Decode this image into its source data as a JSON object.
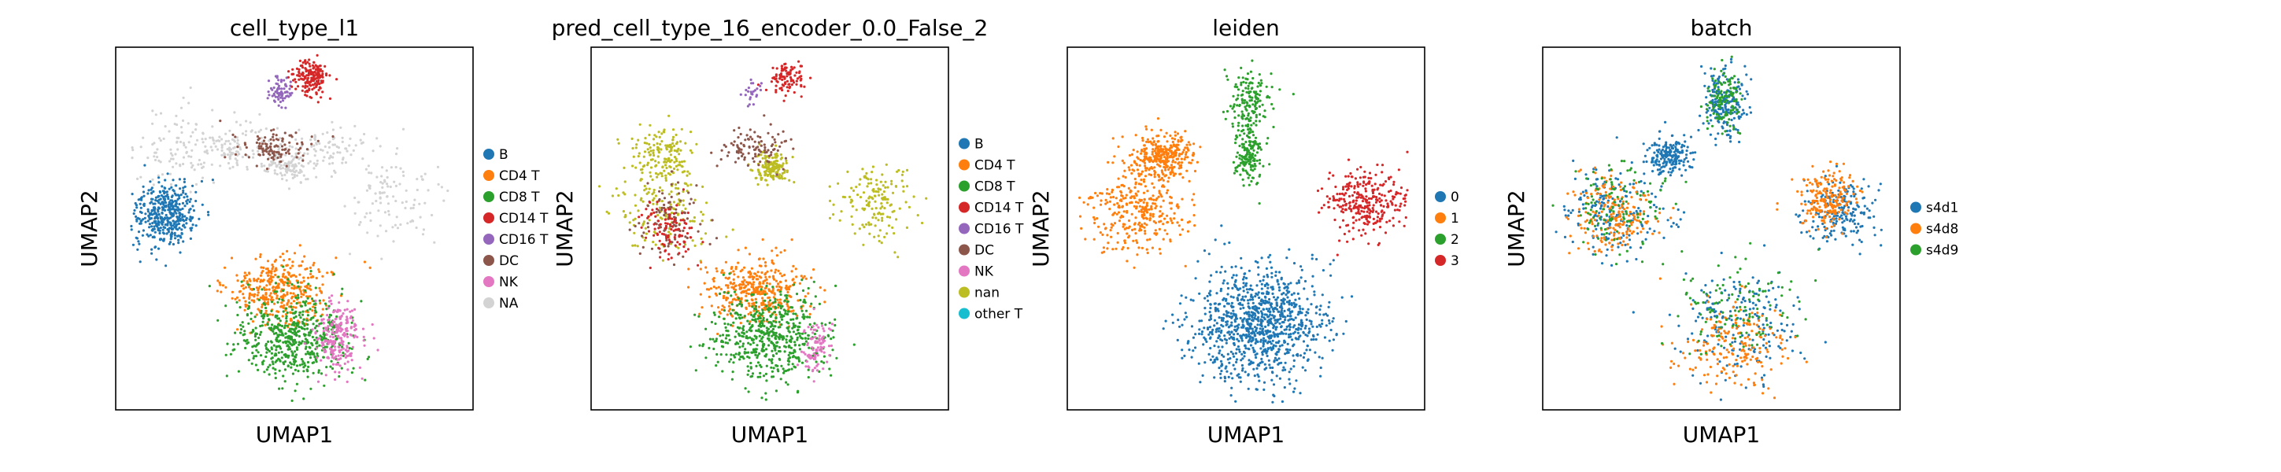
{
  "chart_data": [
    {
      "type": "scatter",
      "title": "cell_type_l1",
      "xlabel": "UMAP1",
      "ylabel": "UMAP2",
      "grid": false,
      "axis_ticks": false,
      "legend_position": "right",
      "legend": [
        {
          "label": "B",
          "color": "#1f77b4"
        },
        {
          "label": "CD4 T",
          "color": "#ff7f0e"
        },
        {
          "label": "CD8 T",
          "color": "#2ca02c"
        },
        {
          "label": "CD14 T",
          "color": "#d62728"
        },
        {
          "label": "CD16 T",
          "color": "#9467bd"
        },
        {
          "label": "DC",
          "color": "#8c564b"
        },
        {
          "label": "NK",
          "color": "#e377c2"
        },
        {
          "label": "NA",
          "color": "#d3d3d3"
        }
      ],
      "groups": [
        {
          "label": "NA",
          "n": 520,
          "regions": [
            [
              0.33,
              0.28,
              0.1,
              0.07
            ],
            [
              0.18,
              0.28,
              0.13,
              0.11
            ],
            [
              0.78,
              0.42,
              0.13,
              0.11
            ],
            [
              0.58,
              0.28,
              0.15,
              0.06
            ],
            [
              0.48,
              0.33,
              0.06,
              0.05
            ]
          ]
        },
        {
          "label": "B",
          "n": 420,
          "regions": [
            [
              0.14,
              0.46,
              0.09,
              0.09
            ]
          ]
        },
        {
          "label": "CD4 T",
          "n": 380,
          "regions": [
            [
              0.46,
              0.67,
              0.14,
              0.09
            ]
          ]
        },
        {
          "label": "CD8 T",
          "n": 560,
          "regions": [
            [
              0.5,
              0.8,
              0.16,
              0.12
            ]
          ]
        },
        {
          "label": "NK",
          "n": 220,
          "regions": [
            [
              0.62,
              0.8,
              0.06,
              0.1
            ]
          ]
        },
        {
          "label": "DC",
          "n": 110,
          "regions": [
            [
              0.45,
              0.28,
              0.1,
              0.05
            ]
          ]
        },
        {
          "label": "CD16 T",
          "n": 70,
          "regions": [
            [
              0.46,
              0.12,
              0.04,
              0.04
            ]
          ]
        },
        {
          "label": "CD14 T",
          "n": 180,
          "regions": [
            [
              0.55,
              0.08,
              0.05,
              0.05
            ]
          ]
        }
      ]
    },
    {
      "type": "scatter",
      "title": "pred_cell_type_16_encoder_0.0_False_2",
      "xlabel": "UMAP1",
      "ylabel": "UMAP2",
      "grid": false,
      "axis_ticks": false,
      "legend_position": "right",
      "legend": [
        {
          "label": "B",
          "color": "#1f77b4"
        },
        {
          "label": "CD4 T",
          "color": "#ff7f0e"
        },
        {
          "label": "CD8 T",
          "color": "#2ca02c"
        },
        {
          "label": "CD14 T",
          "color": "#d62728"
        },
        {
          "label": "CD16 T",
          "color": "#9467bd"
        },
        {
          "label": "DC",
          "color": "#8c564b"
        },
        {
          "label": "NK",
          "color": "#e377c2"
        },
        {
          "label": "nan",
          "color": "#bcbd22"
        },
        {
          "label": "other T",
          "color": "#17becf"
        }
      ],
      "groups": [
        {
          "label": "nan",
          "n": 620,
          "regions": [
            [
              0.2,
              0.45,
              0.14,
              0.13
            ],
            [
              0.79,
              0.43,
              0.11,
              0.11
            ],
            [
              0.2,
              0.3,
              0.08,
              0.07
            ],
            [
              0.5,
              0.33,
              0.05,
              0.04
            ]
          ]
        },
        {
          "label": "DC",
          "n": 200,
          "regions": [
            [
              0.22,
              0.48,
              0.09,
              0.1
            ],
            [
              0.45,
              0.28,
              0.1,
              0.05
            ]
          ]
        },
        {
          "label": "CD14 T",
          "n": 200,
          "regions": [
            [
              0.55,
              0.08,
              0.05,
              0.05
            ],
            [
              0.22,
              0.5,
              0.08,
              0.08
            ]
          ]
        },
        {
          "label": "CD4 T",
          "n": 380,
          "regions": [
            [
              0.46,
              0.67,
              0.14,
              0.09
            ]
          ]
        },
        {
          "label": "CD8 T",
          "n": 580,
          "regions": [
            [
              0.5,
              0.8,
              0.16,
              0.12
            ]
          ]
        },
        {
          "label": "NK",
          "n": 90,
          "regions": [
            [
              0.63,
              0.82,
              0.04,
              0.08
            ]
          ]
        },
        {
          "label": "CD16 T",
          "n": 25,
          "regions": [
            [
              0.45,
              0.12,
              0.03,
              0.03
            ]
          ]
        }
      ]
    },
    {
      "type": "scatter",
      "title": "leiden",
      "xlabel": "UMAP1",
      "ylabel": "UMAP2",
      "grid": false,
      "axis_ticks": false,
      "legend_position": "right",
      "legend": [
        {
          "label": "0",
          "color": "#1f77b4"
        },
        {
          "label": "1",
          "color": "#ff7f0e"
        },
        {
          "label": "2",
          "color": "#2ca02c"
        },
        {
          "label": "3",
          "color": "#d62728"
        }
      ],
      "groups": [
        {
          "label": "1",
          "n": 650,
          "regions": [
            [
              0.2,
              0.45,
              0.14,
              0.12
            ],
            [
              0.26,
              0.3,
              0.09,
              0.06
            ]
          ]
        },
        {
          "label": "2",
          "n": 320,
          "regions": [
            [
              0.51,
              0.15,
              0.06,
              0.1
            ],
            [
              0.51,
              0.3,
              0.04,
              0.08
            ]
          ]
        },
        {
          "label": "3",
          "n": 300,
          "regions": [
            [
              0.83,
              0.43,
              0.11,
              0.09
            ]
          ]
        },
        {
          "label": "0",
          "n": 1000,
          "regions": [
            [
              0.54,
              0.76,
              0.18,
              0.16
            ]
          ]
        }
      ]
    },
    {
      "type": "scatter",
      "title": "batch",
      "xlabel": "UMAP1",
      "ylabel": "UMAP2",
      "grid": false,
      "axis_ticks": false,
      "legend_position": "right",
      "legend": [
        {
          "label": "s4d1",
          "color": "#1f77b4"
        },
        {
          "label": "s4d8",
          "color": "#ff7f0e"
        },
        {
          "label": "s4d9",
          "color": "#2ca02c"
        }
      ],
      "groups": [
        {
          "label": "s4d1",
          "n": 1000,
          "regions": [
            [
              0.2,
              0.45,
              0.14,
              0.12
            ],
            [
              0.51,
              0.15,
              0.06,
              0.1
            ],
            [
              0.83,
              0.45,
              0.1,
              0.09
            ],
            [
              0.54,
              0.76,
              0.18,
              0.16
            ],
            [
              0.35,
              0.3,
              0.06,
              0.05
            ]
          ]
        },
        {
          "label": "s4d8",
          "n": 600,
          "regions": [
            [
              0.2,
              0.46,
              0.12,
              0.11
            ],
            [
              0.54,
              0.82,
              0.16,
              0.12
            ],
            [
              0.8,
              0.42,
              0.08,
              0.08
            ]
          ]
        },
        {
          "label": "s4d9",
          "n": 350,
          "regions": [
            [
              0.21,
              0.44,
              0.13,
              0.12
            ],
            [
              0.54,
              0.72,
              0.16,
              0.14
            ],
            [
              0.51,
              0.15,
              0.05,
              0.08
            ]
          ]
        }
      ]
    }
  ]
}
